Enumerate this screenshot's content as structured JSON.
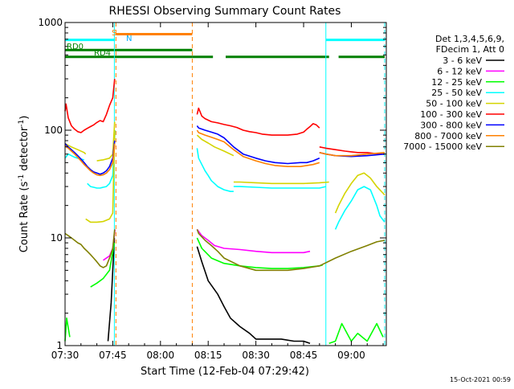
{
  "chart_data": {
    "type": "line",
    "title": "RHESSI Observing Summary Count Rates",
    "xlabel": "Start Time (12-Feb-04 07:29:42)",
    "ylabel_main": "Count Rate (s",
    "ylabel_sup1": "-1",
    "ylabel_mid": " detector",
    "ylabel_sup2": "-1",
    "ylabel_end": ")",
    "footer": "15-Oct-2021 00:59",
    "y_scale": "log",
    "ylim": [
      1,
      1000
    ],
    "xlim_minutes": [
      0,
      101
    ],
    "x_ticks": [
      {
        "label": "07:30",
        "t": 0
      },
      {
        "label": "07:45",
        "t": 15
      },
      {
        "label": "08:00",
        "t": 30
      },
      {
        "label": "08:15",
        "t": 45
      },
      {
        "label": "08:30",
        "t": 60
      },
      {
        "label": "08:45",
        "t": 75
      },
      {
        "label": "09:00",
        "t": 90
      }
    ],
    "y_ticks": [
      {
        "label": "1",
        "v": 1
      },
      {
        "label": "10",
        "v": 10
      },
      {
        "label": "100",
        "v": 100
      },
      {
        "label": "1000",
        "v": 1000
      }
    ],
    "legend": {
      "header1": "Det 1,3,4,5,6,9,",
      "header2": "FDecim 1, Att 0",
      "entries": [
        {
          "label": "3 - 6 keV",
          "color": "#000000"
        },
        {
          "label": "6 - 12 keV",
          "color": "#ff00ff"
        },
        {
          "label": "12 - 25 keV",
          "color": "#00ff00"
        },
        {
          "label": "25 - 50 keV",
          "color": "#00ffff"
        },
        {
          "label": "50 - 100 keV",
          "color": "#d4d400"
        },
        {
          "label": "100 - 300 keV",
          "color": "#ff0000"
        },
        {
          "label": "300 - 800 keV",
          "color": "#0000ff"
        },
        {
          "label": "800 - 7000 keV",
          "color": "#ff8000"
        },
        {
          "label": "7000 - 15000 keV",
          "color": "#808000"
        }
      ]
    },
    "flag_labels": {
      "S": "S",
      "N": "N",
      "RD0": "RD0",
      "RD4": "RD4"
    },
    "flag_bars": [
      {
        "name": "RD0",
        "color": "#008000",
        "value": 480,
        "segments": [
          [
            0,
            40
          ],
          [
            40,
            46.5
          ],
          [
            50.5,
            83
          ],
          [
            86,
            100.5
          ]
        ]
      },
      {
        "name": "RD4",
        "color": "#008000",
        "value": 555,
        "segments": [
          [
            0,
            40
          ]
        ]
      },
      {
        "name": "N",
        "color": "#00ffff",
        "value": 690,
        "segments": [
          [
            0,
            15.7
          ],
          [
            82,
            100.5
          ]
        ]
      },
      {
        "name": "S",
        "color": "#ff8000",
        "value": 780,
        "segments": [
          [
            16,
            40
          ]
        ]
      }
    ],
    "vlines": [
      {
        "t": 16,
        "color": "#ff8000",
        "style": "dashed"
      },
      {
        "t": 40,
        "color": "#ff8000",
        "style": "dashed"
      },
      {
        "t": 15.5,
        "color": "#00ffff",
        "style": "solid"
      },
      {
        "t": 82,
        "color": "#00ffff",
        "style": "solid"
      },
      {
        "t": 100.5,
        "color": "#00ffff",
        "style": "dashed"
      }
    ],
    "series": [
      {
        "name": "3 - 6 keV",
        "color": "#000000",
        "segments": [
          {
            "x": [
              13.5,
              14.5,
              15.5
            ],
            "y": [
              1.1,
              2.5,
              10
            ]
          },
          {
            "x": [
              41.5,
              43,
              45,
              48,
              50,
              52,
              55,
              58,
              60,
              64,
              68,
              72,
              75,
              77
            ],
            "y": [
              8.3,
              6,
              4,
              3,
              2.3,
              1.8,
              1.5,
              1.3,
              1.15,
              1.15,
              1.15,
              1.1,
              1.1,
              1.05
            ]
          }
        ]
      },
      {
        "name": "6 - 12 keV",
        "color": "#ff00ff",
        "segments": [
          {
            "x": [
              12,
              13,
              14,
              15,
              15.7
            ],
            "y": [
              6.2,
              6.5,
              6.8,
              8,
              12
            ]
          },
          {
            "x": [
              41.5,
              43,
              45,
              47,
              50,
              55,
              60,
              65,
              70,
              75,
              77
            ],
            "y": [
              12,
              10.5,
              9.5,
              8.5,
              8,
              7.8,
              7.5,
              7.3,
              7.3,
              7.3,
              7.5
            ]
          }
        ]
      },
      {
        "name": "12 - 25 keV",
        "color": "#00ff00",
        "segments": [
          {
            "x": [
              0,
              0.5,
              1.5
            ],
            "y": [
              1.1,
              1.8,
              1.2
            ]
          },
          {
            "x": [
              8,
              10,
              12,
              14,
              15.5
            ],
            "y": [
              3.5,
              3.8,
              4.2,
              5,
              9
            ]
          },
          {
            "x": [
              41.5,
              43,
              46,
              50,
              55,
              60,
              65,
              70,
              75,
              80,
              81
            ],
            "y": [
              10,
              8,
              6.5,
              5.8,
              5.5,
              5.3,
              5.2,
              5.2,
              5.3,
              5.5,
              5.6
            ]
          },
          {
            "x": [
              83,
              85,
              87,
              90,
              92,
              95,
              98,
              100
            ],
            "y": [
              1.05,
              1.1,
              1.6,
              1.1,
              1.3,
              1.1,
              1.6,
              1.2
            ]
          }
        ]
      },
      {
        "name": "25 - 50 keV",
        "color": "#00ffff",
        "segments": [
          {
            "x": [
              0,
              1,
              2,
              3,
              4,
              5,
              6
            ],
            "y": [
              55,
              60,
              58,
              56,
              55,
              54,
              53
            ]
          },
          {
            "x": [
              7,
              8,
              9,
              10,
              11,
              12,
              13,
              14,
              15,
              15.7
            ],
            "y": [
              32,
              30,
              29.5,
              29,
              29,
              29.5,
              30,
              32,
              38,
              100
            ]
          },
          {
            "x": [
              41.5,
              42,
              43,
              44,
              45,
              46,
              47,
              48,
              50,
              52,
              53
            ],
            "y": [
              68,
              55,
              48,
              42,
              38,
              34,
              32,
              30,
              28,
              27,
              27
            ]
          },
          {
            "x": [
              53,
              55,
              60,
              65,
              70,
              75,
              80,
              82
            ],
            "y": [
              30,
              30,
              29.5,
              29,
              29,
              29,
              29,
              30
            ]
          },
          {
            "x": [
              85,
              86,
              88,
              90,
              92,
              94,
              96,
              98,
              99,
              100.5
            ],
            "y": [
              12,
              14,
              18,
              22,
              28,
              30,
              28,
              20,
              16,
              14
            ]
          }
        ]
      },
      {
        "name": "50 - 100 keV",
        "color": "#d4d400",
        "segments": [
          {
            "x": [
              0,
              2,
              4,
              6,
              6.5
            ],
            "y": [
              75,
              70,
              66,
              62,
              60
            ]
          },
          {
            "x": [
              6.5,
              8,
              10,
              12,
              14,
              15,
              15.6
            ],
            "y": [
              15,
              14,
              14,
              14.2,
              15,
              17,
              100
            ]
          },
          {
            "x": [
              10,
              12,
              14,
              15,
              15.6
            ],
            "y": [
              52,
              53,
              55,
              60,
              120
            ]
          },
          {
            "x": [
              41.5,
              43,
              45,
              47,
              50,
              53
            ],
            "y": [
              90,
              82,
              76,
              70,
              64,
              58
            ]
          },
          {
            "x": [
              53,
              55,
              60,
              65,
              70,
              75,
              80,
              83
            ],
            "y": [
              33,
              33,
              32.5,
              32,
              32,
              32,
              32.5,
              33
            ]
          },
          {
            "x": [
              85,
              86,
              88,
              90,
              92,
              94,
              96,
              98,
              100,
              100.5
            ],
            "y": [
              17,
              20,
              26,
              32,
              38,
              40,
              36,
              30,
              26,
              25
            ]
          }
        ]
      },
      {
        "name": "100 - 300 keV",
        "color": "#ff0000",
        "segments": [
          {
            "x": [
              0,
              0.3,
              1,
              2,
              3,
              4,
              5,
              6,
              7,
              8,
              9,
              10,
              11,
              12,
              13,
              14,
              15,
              15.6
            ],
            "y": [
              150,
              175,
              130,
              110,
              102,
              97,
              95,
              100,
              104,
              108,
              112,
              118,
              123,
              120,
              140,
              170,
              200,
              300
            ]
          },
          {
            "x": [
              41.5,
              42,
              43,
              44,
              46,
              48,
              50,
              52,
              54,
              56,
              58,
              60,
              62,
              65,
              70,
              73,
              75,
              76,
              77,
              78,
              79,
              80
            ],
            "y": [
              140,
              160,
              135,
              128,
              120,
              117,
              113,
              110,
              106,
              100,
              97,
              95,
              92,
              90,
              90,
              92,
              96,
              102,
              108,
              115,
              112,
              105
            ]
          },
          {
            "x": [
              80,
              82,
              85,
              88,
              90,
              92,
              95,
              97,
              100,
              100.5
            ],
            "y": [
              70,
              68,
              66,
              64,
              63,
              62,
              62,
              61,
              60,
              60
            ]
          }
        ]
      },
      {
        "name": "300 - 800 keV",
        "color": "#0000ff",
        "segments": [
          {
            "x": [
              0,
              1,
              2,
              3,
              4,
              5,
              6,
              7,
              8,
              9,
              10,
              11,
              12,
              13,
              14,
              15,
              15.6
            ],
            "y": [
              75,
              70,
              66,
              62,
              58,
              54,
              50,
              46,
              43,
              41,
              40,
              39,
              40,
              42,
              46,
              55,
              80
            ]
          },
          {
            "x": [
              41.5,
              42,
              44,
              46,
              48,
              50,
              53,
              56,
              60,
              63,
              66,
              70,
              74,
              76,
              78,
              80
            ],
            "y": [
              110,
              105,
              100,
              96,
              92,
              85,
              70,
              60,
              55,
              52,
              50,
              49,
              50,
              50,
              52,
              55
            ]
          },
          {
            "x": [
              80,
              82,
              85,
              90,
              95,
              100.5
            ],
            "y": [
              62,
              60,
              58,
              57,
              58,
              60
            ]
          }
        ]
      },
      {
        "name": "800 - 7000 keV",
        "color": "#ff8000",
        "segments": [
          {
            "x": [
              0,
              1,
              2,
              3,
              4,
              5,
              6,
              7,
              8,
              9,
              10,
              11,
              12,
              13,
              14,
              15,
              15.6
            ],
            "y": [
              72,
              68,
              64,
              60,
              56,
              52,
              48,
              45,
              42,
              40,
              38.5,
              38,
              38.5,
              40,
              43,
              50,
              75
            ]
          },
          {
            "x": [
              41.5,
              42,
              44,
              46,
              48,
              50,
              53,
              56,
              60,
              63,
              66,
              70,
              74,
              76,
              78,
              80
            ],
            "y": [
              100,
              95,
              90,
              86,
              82,
              78,
              66,
              57,
              52,
              49,
              47,
              46,
              46,
              47,
              48,
              50
            ]
          },
          {
            "x": [
              80,
              82,
              85,
              90,
              95,
              100.5
            ],
            "y": [
              62,
              60,
              58,
              58,
              60,
              62
            ]
          }
        ]
      },
      {
        "name": "7000 - 15000 keV",
        "color": "#808000",
        "segments": [
          {
            "x": [
              0,
              1,
              2,
              3,
              4,
              5,
              6,
              7,
              8,
              9,
              10,
              11,
              12,
              13,
              14,
              15,
              15.6
            ],
            "y": [
              11,
              10.5,
              10,
              9.5,
              9,
              8.7,
              8,
              7.5,
              7,
              6.5,
              6,
              5.5,
              5.3,
              5.5,
              6.5,
              8,
              12
            ]
          },
          {
            "x": [
              41.5,
              42,
              44,
              46,
              48,
              50,
              55,
              60,
              65,
              70,
              75,
              80,
              85,
              90,
              95,
              98,
              100.5
            ],
            "y": [
              12,
              11,
              9.5,
              8.5,
              7.5,
              6.5,
              5.5,
              5,
              5,
              5,
              5.2,
              5.5,
              6.5,
              7.5,
              8.5,
              9.2,
              9.5
            ]
          }
        ]
      }
    ]
  }
}
